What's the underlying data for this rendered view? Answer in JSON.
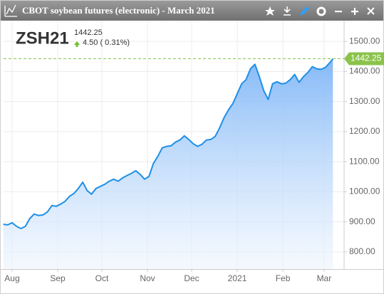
{
  "window_title": "CBOT soybean futures (electronic) - March 2021",
  "chart_data": {
    "type": "area",
    "symbol": "ZSH21",
    "price": "1442.25",
    "change": "4.50 ( 0.31%)",
    "last": 1442.25,
    "color": "#1e8fe6",
    "last_color": "#8bc34a",
    "grid": true,
    "x": [
      -6,
      -3,
      0,
      3,
      6,
      9,
      12,
      15,
      18,
      21,
      24,
      27,
      30,
      33,
      36,
      39,
      42,
      45,
      48,
      51,
      54,
      57,
      60,
      63,
      66,
      69,
      72,
      75,
      78,
      81,
      84,
      87,
      90,
      93,
      96,
      99,
      102,
      105,
      108,
      111,
      114,
      117,
      120,
      123,
      126,
      129,
      132,
      135,
      138,
      141,
      144,
      147,
      150,
      153,
      156,
      159,
      162,
      165,
      168,
      171,
      174,
      177,
      180,
      183,
      186,
      189,
      192,
      195,
      198,
      201,
      204,
      207,
      210,
      213,
      216,
      218
    ],
    "values": [
      892,
      890,
      897,
      885,
      878,
      885,
      911,
      926,
      921,
      923,
      933,
      954,
      952,
      959,
      968,
      985,
      994,
      1011,
      1032,
      1004,
      992,
      1011,
      1018,
      1025,
      1035,
      1042,
      1035,
      1046,
      1054,
      1061,
      1070,
      1058,
      1042,
      1051,
      1094,
      1118,
      1146,
      1151,
      1153,
      1165,
      1172,
      1186,
      1174,
      1160,
      1151,
      1158,
      1172,
      1174,
      1184,
      1212,
      1246,
      1272,
      1293,
      1326,
      1359,
      1373,
      1409,
      1424,
      1383,
      1336,
      1307,
      1359,
      1366,
      1359,
      1361,
      1373,
      1390,
      1364,
      1383,
      1397,
      1416,
      1409,
      1407,
      1414,
      1430,
      1442.25
    ],
    "xlim": [
      -5.8,
      225.6
    ],
    "xticks": [
      {
        "value": 0,
        "label": "Aug"
      },
      {
        "value": 31,
        "label": "Sep"
      },
      {
        "value": 61,
        "label": "Oct"
      },
      {
        "value": 92,
        "label": "Nov"
      },
      {
        "value": 122,
        "label": "Dec"
      },
      {
        "value": 153,
        "label": "2021"
      },
      {
        "value": 184,
        "label": "Feb"
      },
      {
        "value": 212,
        "label": "Mar"
      }
    ],
    "ylim": [
      743,
      1569
    ],
    "yticks": [
      {
        "value": 800,
        "label": "800.00"
      },
      {
        "value": 900,
        "label": "900.00"
      },
      {
        "value": 1000,
        "label": "1000.00"
      },
      {
        "value": 1100,
        "label": "1100.00"
      },
      {
        "value": 1200,
        "label": "1200.00"
      },
      {
        "value": 1300,
        "label": "1300.00"
      },
      {
        "value": 1400,
        "label": "1400.00"
      },
      {
        "value": 1500,
        "label": "1500.00"
      }
    ]
  }
}
